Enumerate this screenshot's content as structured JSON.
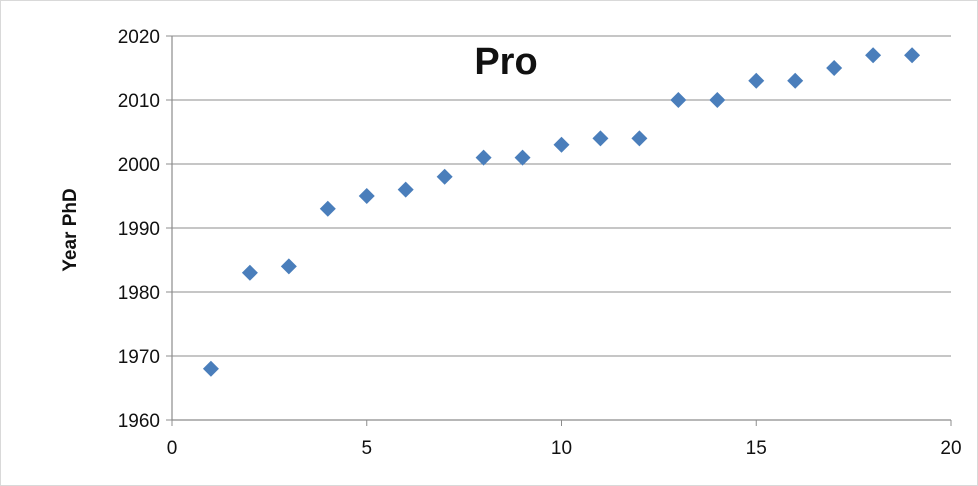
{
  "chart_data": {
    "type": "scatter",
    "title": "Pro",
    "xlabel": "",
    "ylabel": "Year PhD",
    "xlim": [
      0,
      20
    ],
    "ylim": [
      1960,
      2020
    ],
    "xticks": [
      0,
      5,
      10,
      15,
      20
    ],
    "yticks": [
      1960,
      1970,
      1980,
      1990,
      2000,
      2010,
      2020
    ],
    "grid": "horizontal",
    "marker": "diamond",
    "colors": {
      "series": "#4a7ebb",
      "grid": "#8c8c8c",
      "frame": "#d9d9d9"
    },
    "series": [
      {
        "points": [
          {
            "x": 1,
            "y": 1968
          },
          {
            "x": 2,
            "y": 1983
          },
          {
            "x": 3,
            "y": 1984
          },
          {
            "x": 4,
            "y": 1993
          },
          {
            "x": 5,
            "y": 1995
          },
          {
            "x": 6,
            "y": 1996
          },
          {
            "x": 7,
            "y": 1998
          },
          {
            "x": 8,
            "y": 2001
          },
          {
            "x": 9,
            "y": 2001
          },
          {
            "x": 10,
            "y": 2003
          },
          {
            "x": 11,
            "y": 2004
          },
          {
            "x": 12,
            "y": 2004
          },
          {
            "x": 13,
            "y": 2010
          },
          {
            "x": 14,
            "y": 2010
          },
          {
            "x": 15,
            "y": 2013
          },
          {
            "x": 16,
            "y": 2013
          },
          {
            "x": 17,
            "y": 2015
          },
          {
            "x": 18,
            "y": 2017
          },
          {
            "x": 19,
            "y": 2017
          }
        ]
      }
    ]
  }
}
